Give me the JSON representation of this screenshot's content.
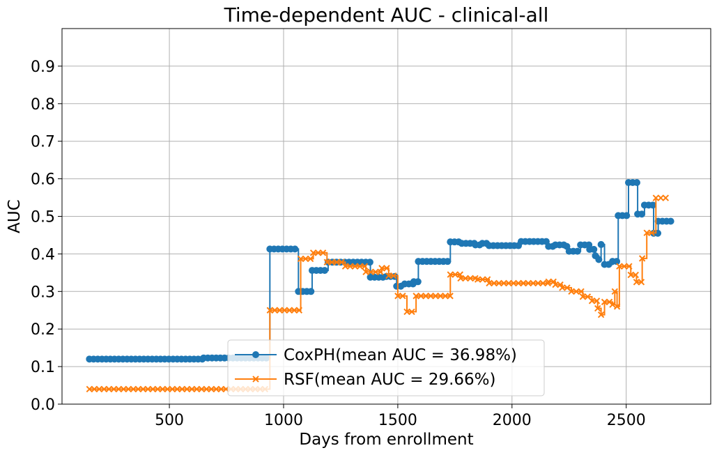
{
  "chart_data": {
    "type": "line",
    "title": "Time-dependent AUC - clinical-all",
    "xlabel": "Days from enrollment",
    "ylabel": "AUC",
    "xlim": [
      30,
      2870
    ],
    "ylim": [
      0,
      1.0
    ],
    "x_ticks": [
      500,
      1000,
      1500,
      2000,
      2500
    ],
    "y_ticks": [
      0.0,
      0.1,
      0.2,
      0.3,
      0.4,
      0.5,
      0.6,
      0.7,
      0.8,
      0.9
    ],
    "x_tick_labels": [
      "500",
      "1000",
      "1500",
      "2000",
      "2500"
    ],
    "y_tick_labels": [
      "0.0",
      "0.1",
      "0.2",
      "0.3",
      "0.4",
      "0.5",
      "0.6",
      "0.7",
      "0.8",
      "0.9"
    ],
    "grid": true,
    "legend_position": "bottom-center",
    "series": [
      {
        "name": "CoxPH(mean AUC = 36.98%)",
        "color": "#1f77b4",
        "marker": "circle",
        "x": [
          150,
          650,
          940,
          1065,
          1125,
          1195,
          1380,
          1450,
          1495,
          1530,
          1570,
          1590,
          1730,
          1780,
          1840,
          1870,
          1900,
          2040,
          2160,
          2190,
          2240,
          2250,
          2300,
          2340,
          2365,
          2380,
          2390,
          2405,
          2440,
          2465,
          2510,
          2550,
          2580,
          2620,
          2640
        ],
        "y": [
          0.12,
          0.123,
          0.413,
          0.3,
          0.356,
          0.378,
          0.338,
          0.34,
          0.314,
          0.32,
          0.326,
          0.38,
          0.432,
          0.428,
          0.424,
          0.428,
          0.422,
          0.433,
          0.42,
          0.424,
          0.42,
          0.407,
          0.424,
          0.412,
          0.395,
          0.385,
          0.425,
          0.372,
          0.38,
          0.502,
          0.59,
          0.506,
          0.53,
          0.455,
          0.487
        ]
      },
      {
        "name": "RSF(mean AUC = 29.66%)",
        "color": "#ff7f0e",
        "marker": "x",
        "x": [
          150,
          940,
          1075,
          1130,
          1190,
          1270,
          1360,
          1430,
          1460,
          1500,
          1540,
          1580,
          1730,
          1775,
          1850,
          1900,
          2050,
          2160,
          2190,
          2220,
          2260,
          2310,
          2350,
          2375,
          2390,
          2405,
          2440,
          2450,
          2460,
          2470,
          2520,
          2545,
          2570,
          2590,
          2630
        ],
        "y": [
          0.04,
          0.25,
          0.387,
          0.403,
          0.378,
          0.367,
          0.352,
          0.362,
          0.342,
          0.288,
          0.246,
          0.288,
          0.345,
          0.335,
          0.332,
          0.322,
          0.322,
          0.326,
          0.318,
          0.31,
          0.3,
          0.286,
          0.275,
          0.255,
          0.238,
          0.272,
          0.265,
          0.3,
          0.26,
          0.367,
          0.344,
          0.325,
          0.388,
          0.456,
          0.549
        ]
      }
    ]
  }
}
